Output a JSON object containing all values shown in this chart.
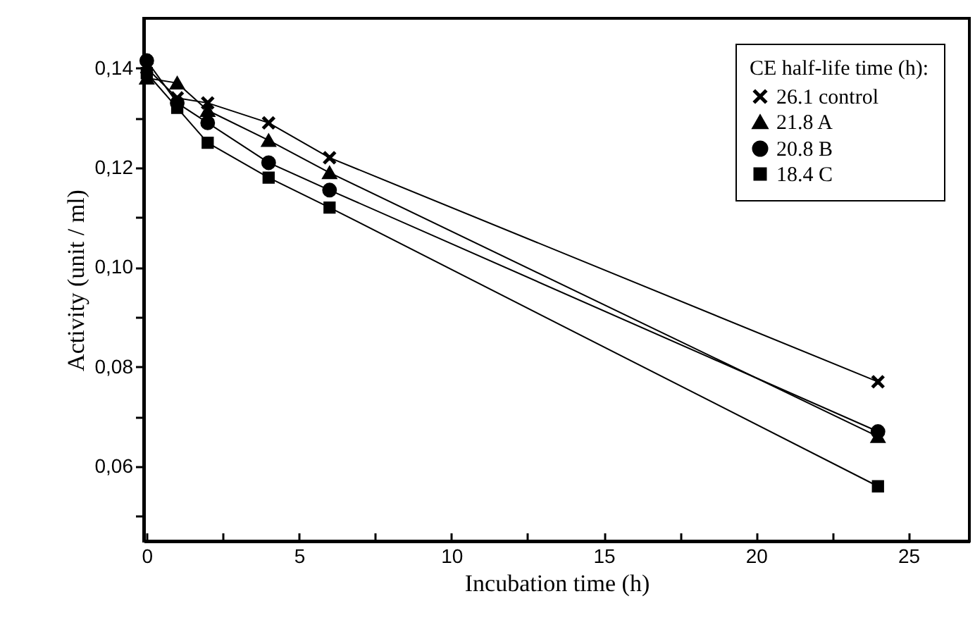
{
  "chart_data": {
    "type": "line",
    "xlabel": "Incubation time (h)",
    "ylabel": "Activity (unit / ml)",
    "legend_title": "CE half-life time (h):",
    "legend": "top right",
    "grid": false,
    "x": [
      0,
      1,
      2,
      4,
      6,
      24
    ],
    "series": [
      {
        "name": "26.1   control",
        "color": "#000000",
        "marker": "cross",
        "values": [
          0.14,
          0.134,
          0.133,
          0.129,
          0.122,
          0.077
        ]
      },
      {
        "name": "21.8   A",
        "color": "#000000",
        "marker": "triangle",
        "values": [
          0.138,
          0.137,
          0.1315,
          0.1255,
          0.119,
          0.066
        ]
      },
      {
        "name": "20.8   B",
        "color": "#000000",
        "marker": "circle",
        "values": [
          0.1415,
          0.133,
          0.129,
          0.121,
          0.1155,
          0.067
        ]
      },
      {
        "name": "18.4   C",
        "color": "#000000",
        "marker": "square",
        "values": [
          0.139,
          0.132,
          0.125,
          0.118,
          0.112,
          0.056
        ]
      }
    ],
    "xlim": [
      -0.1,
      27
    ],
    "xticks": [
      0,
      {
        "value": 2.5,
        "label": null
      },
      5,
      {
        "value": 7.5,
        "label": null
      },
      10,
      {
        "value": 12.5,
        "label": null
      },
      15,
      {
        "value": 17.5,
        "label": null
      },
      20,
      {
        "value": 22.5,
        "label": null
      },
      25
    ],
    "ylim": [
      0.045,
      0.15
    ],
    "yticks": [
      {
        "value": 0.05,
        "label": null
      },
      {
        "value": 0.06,
        "label": "0,06"
      },
      {
        "value": 0.07,
        "label": null
      },
      {
        "value": 0.08,
        "label": "0,08"
      },
      {
        "value": 0.09,
        "label": null
      },
      {
        "value": 0.1,
        "label": "0,10"
      },
      {
        "value": 0.11,
        "label": null
      },
      {
        "value": 0.12,
        "label": "0,12"
      },
      {
        "value": 0.13,
        "label": null
      },
      {
        "value": 0.14,
        "label": "0,14"
      }
    ]
  }
}
